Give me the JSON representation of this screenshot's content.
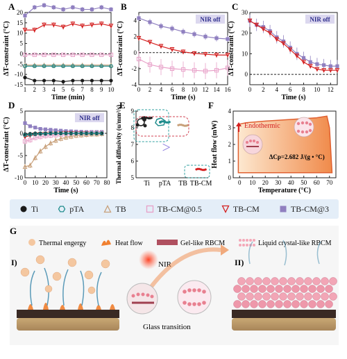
{
  "colors": {
    "Ti": "#1a1a1a",
    "pTA": "#1e8c8c",
    "TB": "#c8a07a",
    "TB-CM@0.5": "#e8a0c8",
    "TB-CM": "#d42020",
    "TB-CM@3": "#9080c0",
    "badge": "#dcd8ef"
  },
  "legend": [
    {
      "key": "Ti",
      "label": "Ti",
      "marker": "circle-filled"
    },
    {
      "key": "pTA",
      "label": "pTA",
      "marker": "hexagon-open"
    },
    {
      "key": "TB",
      "label": "TB",
      "marker": "triangle-open"
    },
    {
      "key": "TB-CM@0.5",
      "label": "TB-CM@0.5",
      "marker": "square-open"
    },
    {
      "key": "TB-CM",
      "label": "TB-CM",
      "marker": "triangle-down-open"
    },
    {
      "key": "TB-CM@3",
      "label": "TB-CM@3",
      "marker": "square-filled"
    }
  ],
  "chart_data": [
    {
      "panel": "A",
      "type": "line",
      "xlabel": "Time (min)",
      "ylabel": "ΔT-constraint (°C)",
      "xlim": [
        1,
        10
      ],
      "ylim": [
        -15,
        20
      ],
      "xticks": [
        1,
        2,
        3,
        4,
        5,
        6,
        7,
        8,
        9,
        10
      ],
      "yticks": [
        -15,
        -10,
        -5,
        0,
        5,
        10,
        15,
        20
      ],
      "refline": 0,
      "series": [
        {
          "key": "TB-CM@3",
          "x": [
            1,
            2,
            3,
            4,
            5,
            6,
            7,
            8,
            9,
            10
          ],
          "y": [
            18.5,
            22.5,
            23.5,
            22.5,
            21.5,
            22.5,
            21.5,
            21.5,
            22.5,
            21.5
          ],
          "err": 1.2
        },
        {
          "key": "TB-CM",
          "x": [
            1,
            2,
            3,
            4,
            5,
            6,
            7,
            8,
            9,
            10
          ],
          "y": [
            11.5,
            11.5,
            14,
            14,
            13,
            14.5,
            13.5,
            14,
            14.5,
            13.5
          ],
          "err": 1.2
        },
        {
          "key": "TB-CM@0.5",
          "x": [
            1,
            2,
            3,
            4,
            5,
            6,
            7,
            8,
            9,
            10
          ],
          "y": [
            -0.5,
            -0.5,
            -0.5,
            -0.5,
            -0.5,
            -0.5,
            -0.5,
            -0.5,
            -0.5,
            -0.5
          ],
          "err": 0.4
        },
        {
          "key": "TB",
          "x": [
            1,
            2,
            3,
            4,
            5,
            6,
            7,
            8,
            9,
            10
          ],
          "y": [
            -5.5,
            -5.5,
            -5.5,
            -5.5,
            -5.5,
            -5.5,
            -5.5,
            -5.5,
            -5.5,
            -5.5
          ],
          "err": 0.4
        },
        {
          "key": "pTA",
          "x": [
            1,
            2,
            3,
            4,
            5,
            6,
            7,
            8,
            9,
            10
          ],
          "y": [
            -6,
            -6,
            -6,
            -6,
            -6,
            -6,
            -6,
            -6,
            -6,
            -6
          ],
          "err": 0.4
        },
        {
          "key": "Ti",
          "x": [
            1,
            2,
            3,
            4,
            5,
            6,
            7,
            8,
            9,
            10
          ],
          "y": [
            -11.5,
            -13,
            -13,
            -13,
            -13.5,
            -13,
            -13,
            -13,
            -13,
            -13
          ],
          "err": 0.8
        }
      ]
    },
    {
      "panel": "B",
      "type": "line",
      "badge": "NIR off",
      "xlabel": "Time (s)",
      "ylabel": "ΔT-constraint (°C)",
      "xlim": [
        0,
        16
      ],
      "ylim": [
        -4,
        5
      ],
      "xticks": [
        0,
        2,
        4,
        6,
        8,
        10,
        12,
        14,
        16
      ],
      "yticks": [
        -4,
        -2,
        0,
        2,
        4
      ],
      "refline": 0,
      "series": [
        {
          "key": "TB-CM@3",
          "x": [
            0,
            2,
            4,
            6,
            8,
            10,
            12,
            14,
            16
          ],
          "y": [
            4.3,
            3.8,
            3.3,
            3.0,
            2.6,
            2.3,
            2.0,
            1.8,
            1.7
          ],
          "err": 0.4
        },
        {
          "key": "TB-CM",
          "x": [
            0,
            2,
            4,
            6,
            8,
            10,
            12,
            14,
            16
          ],
          "y": [
            1.8,
            1.3,
            0.8,
            0.4,
            0.1,
            -0.1,
            -0.2,
            -0.3,
            -0.3
          ],
          "err": 0.3
        },
        {
          "key": "TB-CM@0.5",
          "x": [
            0,
            2,
            4,
            6,
            8,
            10,
            12,
            14,
            16
          ],
          "y": [
            -0.8,
            -1.5,
            -1.8,
            -2.0,
            -2.1,
            -2.2,
            -2.3,
            -2.2,
            -1.9
          ],
          "err": 1.0
        }
      ]
    },
    {
      "panel": "C",
      "type": "line",
      "badge": "NIR off",
      "xlabel": "Time (s)",
      "ylabel": "ΔT-constraint (°C)",
      "xlim": [
        0,
        13
      ],
      "ylim": [
        -5,
        30
      ],
      "xticks": [
        0,
        2,
        4,
        6,
        8,
        10,
        12
      ],
      "yticks": [
        0,
        10,
        20,
        30
      ],
      "refline": 0,
      "series": [
        {
          "key": "TB-CM@3",
          "x": [
            0,
            1,
            2,
            3,
            4,
            5,
            6,
            7,
            8,
            9,
            10,
            11,
            12,
            13
          ],
          "y": [
            26,
            24,
            23,
            21,
            18,
            16,
            13,
            10,
            8,
            6,
            5,
            4.5,
            4,
            4
          ],
          "err": 3.0
        },
        {
          "key": "TB-CM",
          "x": [
            0,
            1,
            2,
            3,
            4,
            5,
            6,
            7,
            8,
            9,
            10,
            11,
            12,
            13
          ],
          "y": [
            26,
            24,
            22,
            20,
            17,
            15,
            12,
            9,
            6,
            4,
            2.5,
            2,
            2,
            2
          ],
          "err": 1.0
        }
      ]
    },
    {
      "panel": "D",
      "type": "line",
      "badge": "NIR off",
      "xlabel": "Time (s)",
      "ylabel": "ΔT-constraint (°C)",
      "xlim": [
        0,
        80
      ],
      "ylim": [
        -10,
        5
      ],
      "xticks": [
        0,
        10,
        20,
        30,
        40,
        50,
        60,
        70,
        80
      ],
      "yticks": [
        -10,
        -5,
        0,
        5
      ],
      "refline": 0,
      "series": [
        {
          "key": "TB-CM@3",
          "x": [
            0,
            5,
            10,
            15,
            20,
            25,
            30,
            35,
            40,
            45,
            50,
            55,
            60,
            65,
            70,
            75
          ],
          "y": [
            2.3,
            1.6,
            1.3,
            1.0,
            0.9,
            0.8,
            0.7,
            0.6,
            0.5,
            0.45,
            0.4,
            0.35,
            0.3,
            0.3,
            0.3,
            0.3
          ],
          "err": 0.3
        },
        {
          "key": "TB-CM",
          "x": [
            0,
            5,
            10,
            15,
            20,
            25,
            30,
            35,
            40,
            45,
            50,
            55,
            60,
            65,
            70,
            75
          ],
          "y": [
            -0.8,
            -0.5,
            -0.3,
            -0.2,
            -0.15,
            -0.1,
            -0.1,
            -0.05,
            0,
            0,
            0,
            0,
            0,
            0,
            0,
            0
          ],
          "err": 0.2
        },
        {
          "key": "TB-CM@0.5",
          "x": [
            0,
            5,
            10,
            15,
            20,
            25,
            30,
            35,
            40,
            45,
            50,
            55,
            60,
            65,
            70,
            75
          ],
          "y": [
            -1.8,
            -1.5,
            -1.0,
            -0.8,
            -0.6,
            -0.5,
            -0.4,
            -0.3,
            -0.2,
            -0.2,
            -0.1,
            -0.1,
            -0.1,
            0,
            0,
            0
          ],
          "err": 0.6
        },
        {
          "key": "TB",
          "x": [
            0,
            5,
            10,
            15,
            20,
            25,
            30,
            35,
            40,
            45,
            50,
            55,
            60,
            65,
            70,
            75
          ],
          "y": [
            -7.5,
            -7.2,
            -5.5,
            -4.0,
            -3.0,
            -2.2,
            -1.6,
            -1.2,
            -0.9,
            -0.7,
            -0.5,
            -0.4,
            -0.3,
            -0.2,
            -0.2,
            -0.1
          ],
          "err": 0.6
        },
        {
          "key": "Ti",
          "x": [
            0,
            5,
            10,
            15,
            20,
            25,
            30,
            35,
            40,
            45,
            50,
            55,
            60,
            65,
            70,
            75
          ],
          "y": [
            -0.2,
            -0.1,
            0,
            0,
            0,
            0,
            0,
            0,
            0,
            0,
            0,
            0,
            0,
            0,
            0,
            0
          ],
          "err": 0.1
        },
        {
          "key": "pTA",
          "x": [
            0,
            5,
            10,
            15,
            20,
            25,
            30,
            35,
            40,
            45,
            50,
            55,
            60,
            65,
            70,
            75
          ],
          "y": [
            -0.4,
            -0.3,
            -0.2,
            -0.1,
            -0.1,
            0,
            0,
            0,
            0,
            0,
            0,
            0,
            0,
            0,
            0,
            0
          ],
          "err": 0.1
        }
      ]
    },
    {
      "panel": "E",
      "type": "scatter",
      "xlabel": "",
      "ylabel": "Thermal diffusivity (u/mm²/s)",
      "ylim": [
        5,
        9
      ],
      "yticks": [
        5,
        6,
        7,
        8,
        9
      ],
      "categories": [
        "Ti",
        "pTA",
        "TB",
        "TB-CM"
      ],
      "values": [
        8.6,
        8.35,
        8.15,
        5.5
      ],
      "comparison": ">"
    },
    {
      "panel": "F",
      "type": "area",
      "xlabel": "Temperature (°C)",
      "ylabel": "Heat flow (mW)",
      "xlim": [
        -5,
        75
      ],
      "ylim": [
        0,
        4
      ],
      "xticks": [
        0,
        10,
        20,
        30,
        40,
        50,
        60,
        70
      ],
      "yticks": [
        0,
        1,
        2,
        3,
        4
      ],
      "annotations": [
        "Endothermic",
        "ΔCp=2.682 J/(g • °C)"
      ]
    }
  ],
  "schematic": {
    "panel_label": "G",
    "legend": [
      "Thermal engergy",
      "Heat flow",
      "Gel-like RBCM",
      "Liquid crystal-like RBCM"
    ],
    "stage_left": "I)",
    "stage_right": "II)",
    "stimulus": "NIR",
    "transition": "Glass transition"
  }
}
